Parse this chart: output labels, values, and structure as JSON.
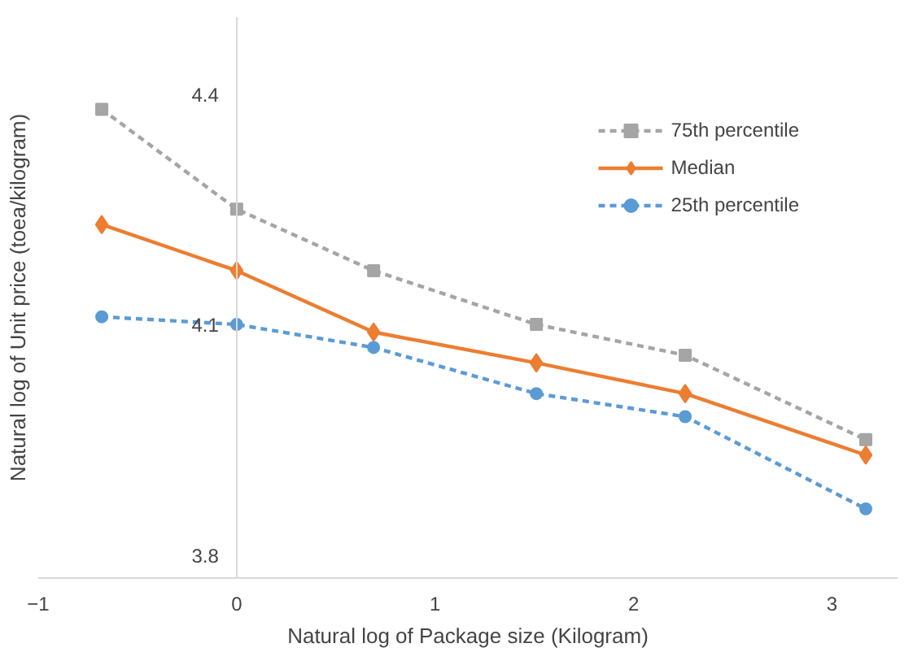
{
  "chart_data": {
    "type": "line",
    "xlabel": "Natural log of Package size (Kilogram)",
    "ylabel": "Natural log of Unit price (toea/kilogram)",
    "x": [
      -0.68,
      0,
      0.69,
      1.51,
      2.26,
      3.17
    ],
    "series": [
      {
        "name": "75th percentile",
        "color": "#a5a5a5",
        "marker": "square",
        "line_style": "dashed",
        "values": [
          4.38,
          4.25,
          4.17,
          4.1,
          4.06,
          3.95
        ]
      },
      {
        "name": "Median",
        "color": "#ed7d31",
        "marker": "diamond",
        "line_style": "solid",
        "values": [
          4.23,
          4.17,
          4.09,
          4.05,
          4.01,
          3.93
        ]
      },
      {
        "name": "25th percentile",
        "color": "#5b9bd5",
        "marker": "circle",
        "line_style": "dashed",
        "values": [
          4.11,
          4.1,
          4.07,
          4.01,
          3.98,
          3.86
        ]
      }
    ],
    "xlim": [
      -1,
      3.33
    ],
    "ylim": [
      3.77,
      4.5
    ],
    "xticks": [
      -1,
      0,
      1,
      2,
      3
    ],
    "yticks": [
      3.8,
      4.1,
      4.4
    ],
    "grid": false,
    "legend": "top right"
  }
}
